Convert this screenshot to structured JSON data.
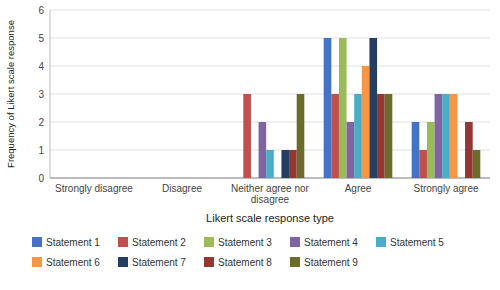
{
  "chart_data": {
    "type": "bar",
    "categories": [
      "Strongly disagree",
      "Disagree",
      "Neither agree nor\ndisagree",
      "Agree",
      "Strongly agree"
    ],
    "series": [
      {
        "name": "Statement 1",
        "color": "#4472C4",
        "values": [
          0,
          0,
          0,
          5,
          2
        ]
      },
      {
        "name": "Statement 2",
        "color": "#C0504D",
        "values": [
          0,
          0,
          3,
          3,
          1
        ]
      },
      {
        "name": "Statement 3",
        "color": "#9BBB59",
        "values": [
          0,
          0,
          0,
          5,
          2
        ]
      },
      {
        "name": "Statement 4",
        "color": "#8064A2",
        "values": [
          0,
          0,
          2,
          2,
          3
        ]
      },
      {
        "name": "Statement 5",
        "color": "#4BACC6",
        "values": [
          0,
          0,
          1,
          3,
          3
        ]
      },
      {
        "name": "Statement 6",
        "color": "#F79646",
        "values": [
          0,
          0,
          0,
          4,
          3
        ]
      },
      {
        "name": "Statement 7",
        "color": "#243F60",
        "values": [
          0,
          0,
          1,
          5,
          0
        ]
      },
      {
        "name": "Statement 8",
        "color": "#943634",
        "values": [
          0,
          0,
          1,
          3,
          2
        ]
      },
      {
        "name": "Statement 9",
        "color": "#6B6B2A",
        "values": [
          0,
          0,
          3,
          3,
          1
        ]
      }
    ],
    "xlabel": "Likert scale response type",
    "ylabel": "Frequency of Likert scale response",
    "ylim": [
      0,
      6
    ],
    "yticks": [
      0,
      1,
      2,
      3,
      4,
      5,
      6
    ],
    "grid": true,
    "legend": "bottom"
  }
}
